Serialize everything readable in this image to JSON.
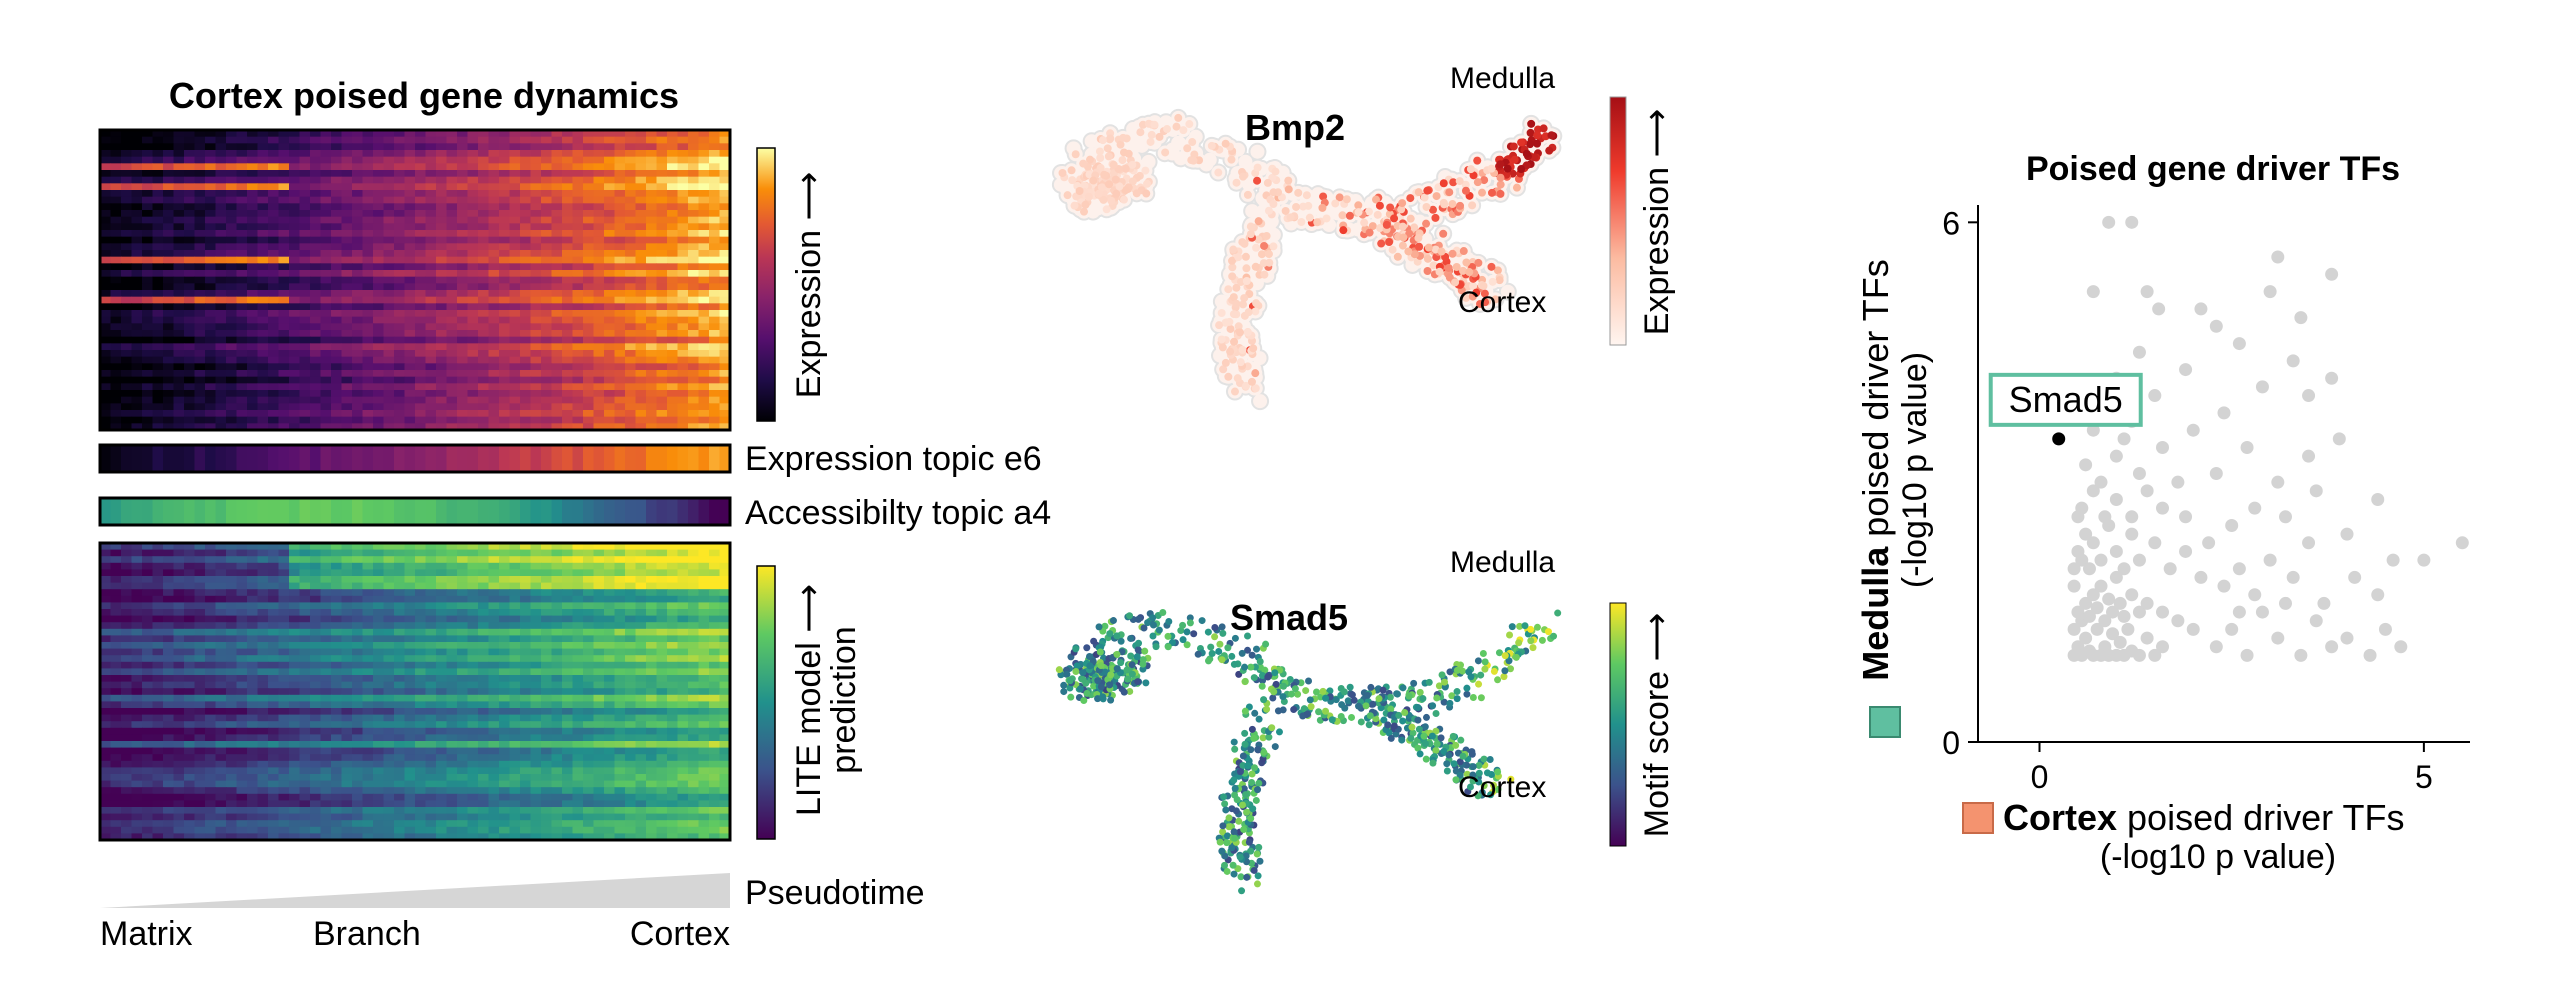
{
  "left_panel": {
    "title": "Cortex poised gene dynamics",
    "expr_colorbar_label": "Expression ⟶",
    "topic_e6_label": "Expression topic e6",
    "topic_a4_label": "Accessibilty topic a4",
    "lite_colorbar_label_1": "LITE model ⟶",
    "lite_colorbar_label_2": "prediction",
    "pseudotime_label": "Pseudotime",
    "axis_labels": [
      "Matrix",
      "Branch",
      "Cortex"
    ],
    "colormaps": {
      "expression": "inferno",
      "accessibility": "viridis",
      "lite": "viridis"
    }
  },
  "middle_panel": {
    "umap_top": {
      "gene": "Bmp2",
      "label_top": "Medulla",
      "label_bottom": "Cortex",
      "colorbar_label": "Expression ⟶",
      "colormap": "Reds"
    },
    "umap_bottom": {
      "gene": "Smad5",
      "label_top": "Medulla",
      "label_bottom": "Cortex",
      "colorbar_label": "Motif score ⟶",
      "colormap": "viridis"
    }
  },
  "right_panel": {
    "title": "Poised gene driver TFs",
    "ylabel_bold": "Medulla",
    "ylabel_rest": " poised driver TFs",
    "ylabel_line2": "(-log10 p value)",
    "xlabel_bold": "Cortex",
    "xlabel_rest": " poised driver TFs",
    "xlabel_line2": "(-log10 p value)",
    "highlight_label": "Smad5",
    "colors": {
      "medulla": "#5fbfa0",
      "cortex": "#f4936f",
      "points": "#d3d3d3",
      "highlight": "#000000"
    }
  },
  "chart_data": [
    {
      "type": "heatmap",
      "title": "Cortex poised gene dynamics",
      "rows": 45,
      "columns": 60,
      "x_axis": "Pseudotime",
      "x_tick_labels": [
        "Matrix",
        "Branch",
        "Cortex"
      ],
      "colorbar": "Expression",
      "trend": "expression increases from Matrix to Cortex"
    },
    {
      "type": "heatmap",
      "title": "",
      "rows": 45,
      "columns": 60,
      "colorbar": "LITE model prediction",
      "x_tick_labels": [
        "Matrix",
        "Branch",
        "Cortex"
      ]
    },
    {
      "type": "scatter",
      "title": "Poised gene driver TFs",
      "xlabel": "Cortex poised driver TFs (-log10 p value)",
      "ylabel": "Medulla poised driver TFs (-log10 p value)",
      "xlim": [
        -0.8,
        5.6
      ],
      "ylim": [
        0,
        6.2
      ],
      "xticks": [
        0,
        5
      ],
      "yticks": [
        0,
        6
      ],
      "highlight": {
        "label": "Smad5",
        "x": 0.25,
        "y": 3.5
      },
      "points": [
        [
          0.45,
          1.0
        ],
        [
          0.5,
          1.1
        ],
        [
          0.55,
          1.0
        ],
        [
          0.6,
          1.2
        ],
        [
          0.65,
          1.05
        ],
        [
          0.7,
          1.0
        ],
        [
          0.75,
          1.3
        ],
        [
          0.8,
          1.0
        ],
        [
          0.85,
          1.1
        ],
        [
          0.9,
          1.0
        ],
        [
          0.95,
          1.25
        ],
        [
          1.0,
          1.0
        ],
        [
          1.05,
          1.15
        ],
        [
          1.1,
          1.0
        ],
        [
          1.15,
          1.3
        ],
        [
          1.2,
          1.05
        ],
        [
          1.3,
          1.0
        ],
        [
          1.4,
          1.2
        ],
        [
          1.5,
          1.0
        ],
        [
          1.6,
          1.1
        ],
        [
          0.45,
          1.3
        ],
        [
          0.5,
          1.5
        ],
        [
          0.55,
          1.4
        ],
        [
          0.6,
          1.6
        ],
        [
          0.65,
          1.45
        ],
        [
          0.7,
          1.7
        ],
        [
          0.75,
          1.55
        ],
        [
          0.8,
          1.8
        ],
        [
          0.85,
          1.4
        ],
        [
          0.9,
          1.65
        ],
        [
          0.95,
          1.5
        ],
        [
          1.0,
          1.9
        ],
        [
          1.05,
          1.6
        ],
        [
          1.1,
          1.45
        ],
        [
          1.2,
          1.7
        ],
        [
          1.3,
          1.5
        ],
        [
          1.4,
          1.6
        ],
        [
          1.6,
          1.5
        ],
        [
          1.8,
          1.4
        ],
        [
          2.0,
          1.3
        ],
        [
          0.45,
          2.0
        ],
        [
          0.5,
          2.2
        ],
        [
          0.55,
          2.1
        ],
        [
          0.6,
          2.4
        ],
        [
          0.65,
          2.0
        ],
        [
          0.7,
          2.3
        ],
        [
          0.8,
          2.1
        ],
        [
          0.9,
          2.5
        ],
        [
          1.0,
          2.2
        ],
        [
          1.1,
          2.0
        ],
        [
          1.2,
          2.4
        ],
        [
          1.3,
          2.1
        ],
        [
          1.5,
          2.3
        ],
        [
          1.7,
          2.0
        ],
        [
          1.9,
          2.2
        ],
        [
          2.1,
          1.9
        ],
        [
          0.55,
          2.7
        ],
        [
          0.7,
          2.9
        ],
        [
          0.85,
          2.6
        ],
        [
          1.0,
          2.8
        ],
        [
          1.2,
          2.6
        ],
        [
          1.4,
          2.9
        ],
        [
          1.6,
          2.7
        ],
        [
          0.6,
          3.2
        ],
        [
          0.8,
          3.0
        ],
        [
          1.0,
          3.3
        ],
        [
          1.3,
          3.1
        ],
        [
          1.6,
          3.4
        ],
        [
          0.7,
          3.6
        ],
        [
          0.9,
          3.9
        ],
        [
          1.2,
          3.7
        ],
        [
          0.75,
          4.1
        ],
        [
          1.0,
          4.2
        ],
        [
          1.3,
          4.5
        ],
        [
          1.5,
          4.0
        ],
        [
          1.9,
          4.3
        ],
        [
          1.4,
          5.2
        ],
        [
          1.55,
          5.0
        ],
        [
          0.7,
          5.2
        ],
        [
          0.9,
          6.0
        ],
        [
          1.2,
          6.0
        ],
        [
          2.3,
          1.1
        ],
        [
          2.5,
          1.3
        ],
        [
          2.7,
          1.0
        ],
        [
          2.9,
          1.5
        ],
        [
          3.1,
          1.2
        ],
        [
          3.4,
          1.0
        ],
        [
          3.6,
          1.4
        ],
        [
          3.8,
          1.1
        ],
        [
          4.0,
          1.2
        ],
        [
          4.3,
          1.0
        ],
        [
          4.5,
          1.3
        ],
        [
          4.7,
          1.1
        ],
        [
          2.4,
          1.8
        ],
        [
          2.6,
          2.0
        ],
        [
          2.8,
          1.7
        ],
        [
          3.0,
          2.1
        ],
        [
          3.3,
          1.9
        ],
        [
          3.5,
          2.3
        ],
        [
          3.7,
          1.6
        ],
        [
          4.1,
          1.9
        ],
        [
          4.4,
          1.7
        ],
        [
          4.6,
          2.1
        ],
        [
          2.5,
          2.5
        ],
        [
          2.8,
          2.7
        ],
        [
          3.2,
          2.6
        ],
        [
          3.6,
          2.9
        ],
        [
          4.0,
          2.4
        ],
        [
          4.4,
          2.8
        ],
        [
          5.0,
          2.1
        ],
        [
          5.5,
          2.3
        ],
        [
          2.3,
          3.1
        ],
        [
          2.7,
          3.4
        ],
        [
          3.1,
          3.0
        ],
        [
          3.5,
          3.3
        ],
        [
          3.9,
          3.5
        ],
        [
          2.4,
          3.8
        ],
        [
          2.9,
          4.1
        ],
        [
          3.3,
          4.4
        ],
        [
          3.8,
          4.2
        ],
        [
          2.3,
          4.8
        ],
        [
          2.6,
          4.6
        ],
        [
          3.0,
          5.2
        ],
        [
          3.4,
          4.9
        ],
        [
          2.1,
          5.0
        ],
        [
          3.1,
          5.6
        ],
        [
          3.8,
          5.4
        ],
        [
          3.5,
          4.0
        ],
        [
          2.0,
          3.6
        ],
        [
          1.8,
          3.0
        ],
        [
          1.9,
          2.6
        ],
        [
          2.2,
          2.3
        ],
        [
          2.6,
          1.5
        ],
        [
          3.2,
          1.6
        ],
        [
          0.45,
          1.8
        ],
        [
          0.5,
          2.6
        ],
        [
          0.6,
          3.8
        ],
        [
          1.05,
          4.0
        ],
        [
          1.1,
          3.5
        ]
      ]
    }
  ]
}
